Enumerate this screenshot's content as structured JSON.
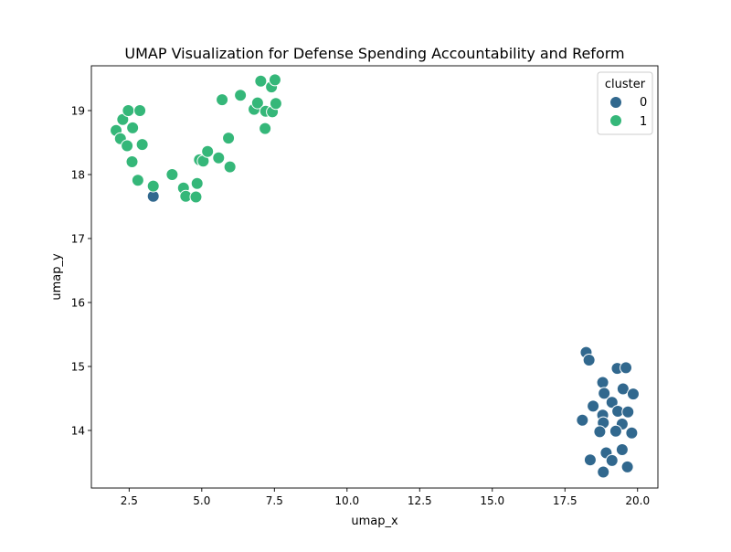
{
  "chart_data": {
    "type": "scatter",
    "title": "UMAP Visualization for Defense Spending Accountability and Reform",
    "xlabel": "umap_x",
    "ylabel": "umap_y",
    "xlim": [
      1.2,
      20.7
    ],
    "ylim": [
      13.1,
      19.7
    ],
    "xticks": [
      2.5,
      5.0,
      7.5,
      10.0,
      12.5,
      15.0,
      17.5,
      20.0
    ],
    "xtick_labels": [
      "2.5",
      "5.0",
      "7.5",
      "10.0",
      "12.5",
      "15.0",
      "17.5",
      "20.0"
    ],
    "yticks": [
      14,
      15,
      16,
      17,
      18,
      19
    ],
    "ytick_labels": [
      "14",
      "15",
      "16",
      "17",
      "18",
      "19"
    ],
    "grid": false,
    "legend": {
      "title": "cluster",
      "placement": "top-right",
      "entries": [
        {
          "label": "0",
          "color": "#31688e"
        },
        {
          "label": "1",
          "color": "#35b779"
        }
      ]
    },
    "series": [
      {
        "name": "0",
        "color": "#31688e",
        "points": [
          [
            3.33,
            17.66
          ],
          [
            18.23,
            15.22
          ],
          [
            18.33,
            15.1
          ],
          [
            19.3,
            14.97
          ],
          [
            19.6,
            14.98
          ],
          [
            18.8,
            14.75
          ],
          [
            19.5,
            14.65
          ],
          [
            18.85,
            14.58
          ],
          [
            19.85,
            14.57
          ],
          [
            19.12,
            14.44
          ],
          [
            18.47,
            14.38
          ],
          [
            19.32,
            14.3
          ],
          [
            19.67,
            14.29
          ],
          [
            18.8,
            14.24
          ],
          [
            18.1,
            14.16
          ],
          [
            18.82,
            14.12
          ],
          [
            19.47,
            14.1
          ],
          [
            18.7,
            13.98
          ],
          [
            19.25,
            13.99
          ],
          [
            19.8,
            13.96
          ],
          [
            18.92,
            13.65
          ],
          [
            19.47,
            13.7
          ],
          [
            18.37,
            13.54
          ],
          [
            19.12,
            13.53
          ],
          [
            19.65,
            13.43
          ],
          [
            18.82,
            13.35
          ]
        ]
      },
      {
        "name": "1",
        "color": "#35b779",
        "points": [
          [
            2.05,
            18.69
          ],
          [
            2.28,
            18.86
          ],
          [
            2.47,
            19.0
          ],
          [
            2.87,
            19.0
          ],
          [
            2.62,
            18.73
          ],
          [
            2.2,
            18.56
          ],
          [
            2.43,
            18.45
          ],
          [
            2.95,
            18.47
          ],
          [
            2.6,
            18.2
          ],
          [
            2.8,
            17.91
          ],
          [
            3.33,
            17.82
          ],
          [
            3.98,
            18.0
          ],
          [
            4.37,
            17.79
          ],
          [
            4.45,
            17.66
          ],
          [
            4.8,
            17.65
          ],
          [
            4.84,
            17.86
          ],
          [
            4.92,
            18.23
          ],
          [
            5.05,
            18.21
          ],
          [
            5.2,
            18.36
          ],
          [
            5.58,
            18.26
          ],
          [
            5.97,
            18.12
          ],
          [
            5.92,
            18.57
          ],
          [
            5.7,
            19.17
          ],
          [
            6.33,
            19.24
          ],
          [
            6.8,
            19.02
          ],
          [
            6.92,
            19.12
          ],
          [
            7.03,
            19.46
          ],
          [
            7.18,
            18.72
          ],
          [
            7.2,
            18.99
          ],
          [
            7.4,
            19.37
          ],
          [
            7.43,
            18.98
          ],
          [
            7.52,
            19.48
          ],
          [
            7.55,
            19.11
          ]
        ]
      }
    ]
  }
}
